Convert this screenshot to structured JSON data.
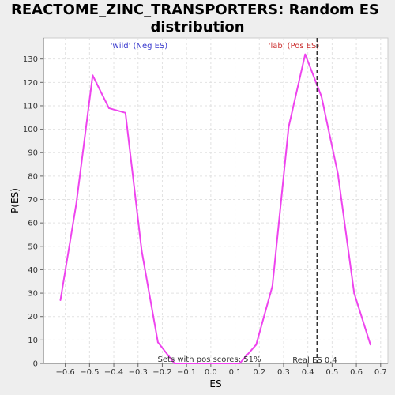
{
  "chart_data": {
    "type": "line",
    "title": "REACTOME_ZINC_TRANSPORTERS: Random ES distribution",
    "xlabel": "ES",
    "ylabel": "P(ES)",
    "xlim": [
      -0.69,
      0.73
    ],
    "ylim": [
      0,
      139
    ],
    "xticks": [
      -0.6,
      -0.5,
      -0.4,
      -0.3,
      -0.2,
      -0.1,
      0.0,
      0.1,
      0.2,
      0.3,
      0.4,
      0.5,
      0.6,
      0.7
    ],
    "xtick_labels": [
      "−0.6",
      "−0.5",
      "−0.4",
      "−0.3",
      "−0.2",
      "−0.1",
      "0.0",
      "0.1",
      "0.2",
      "0.3",
      "0.4",
      "0.5",
      "0.6",
      "0.7"
    ],
    "yticks": [
      0,
      10,
      20,
      30,
      40,
      50,
      60,
      70,
      80,
      90,
      100,
      110,
      120,
      130
    ],
    "grid": true,
    "series": [
      {
        "color": "#ee44ee",
        "x": [
          -0.62,
          -0.555,
          -0.487,
          -0.42,
          -0.352,
          -0.285,
          -0.218,
          -0.15,
          -0.083,
          -0.016,
          0.052,
          0.119,
          0.187,
          0.254,
          0.321,
          0.389,
          0.456,
          0.524,
          0.591,
          0.658
        ],
        "y": [
          27,
          68,
          123,
          109,
          107,
          48,
          9,
          0,
          0,
          0,
          0,
          0,
          8,
          33,
          101,
          132,
          114,
          81,
          30,
          8
        ]
      }
    ],
    "reference_line": {
      "x": 0.4386,
      "label": "Real ES 0.4",
      "color": "#333333"
    },
    "annotations": {
      "neg": {
        "text": "'wild' (Neg ES)",
        "color": "#3333cc"
      },
      "pos": {
        "text": "'lab' (Pos ES)",
        "color": "#cc3333"
      },
      "bottom": {
        "text": "Sets with pos scores: 51%",
        "color": "#333333"
      }
    }
  }
}
